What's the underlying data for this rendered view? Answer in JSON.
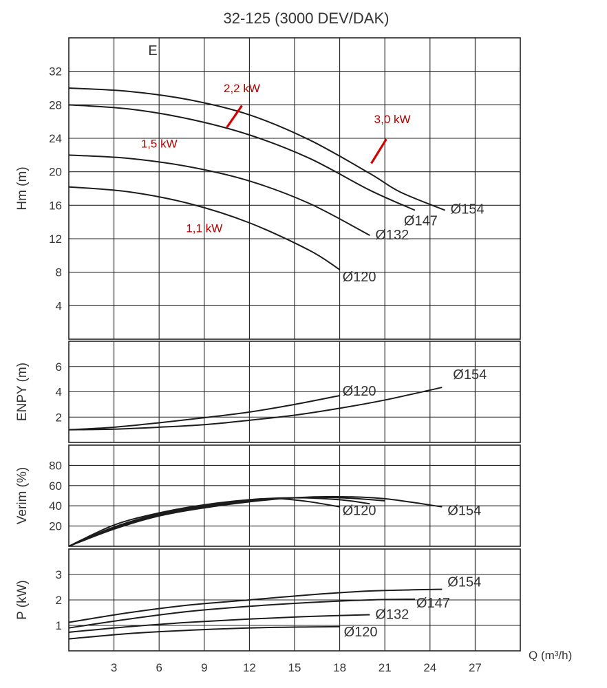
{
  "chart_data": {
    "type": "line",
    "title": "32-125 (3000 DEV/DAK)",
    "xlabel": "Q (m³/h)",
    "xlim": [
      0,
      30
    ],
    "xticks": [
      3,
      6,
      9,
      12,
      15,
      18,
      21,
      24,
      27
    ],
    "panel_letter": "E",
    "panels": [
      {
        "id": "hm",
        "ylabel": "Hm (m)",
        "ylim": [
          0,
          36
        ],
        "yticks": [
          4,
          8,
          12,
          16,
          20,
          24,
          28,
          32
        ],
        "series": [
          {
            "name": "Ø154",
            "x": [
              0,
              4,
              8,
              12,
              16,
              20,
              22,
              25
            ],
            "y": [
              30,
              29.6,
              28.6,
              26.8,
              23.8,
              19.8,
              17.6,
              15.4
            ]
          },
          {
            "name": "Ø147",
            "x": [
              0,
              4,
              8,
              12,
              16,
              20,
              23
            ],
            "y": [
              28,
              27.5,
              26.3,
              24.4,
              21.6,
              17.8,
              15.4
            ]
          },
          {
            "name": "Ø132",
            "x": [
              0,
              4,
              8,
              12,
              16,
              20
            ],
            "y": [
              22,
              21.6,
              20.6,
              18.9,
              16.2,
              12.4
            ]
          },
          {
            "name": "Ø120",
            "x": [
              0,
              4,
              8,
              12,
              16,
              18
            ],
            "y": [
              18.2,
              17.6,
              16.2,
              13.9,
              10.6,
              8.3
            ]
          }
        ],
        "power_labels": [
          {
            "text": "2,2 kW",
            "x": 11.5,
            "y": 29.5
          },
          {
            "text": "3,0 kW",
            "x": 21.5,
            "y": 25.8
          },
          {
            "text": "1,5 kW",
            "x": 6,
            "y": 22.9
          },
          {
            "text": "1,1 kW",
            "x": 9,
            "y": 12.8
          }
        ],
        "power_marks": [
          {
            "x1": 10.5,
            "y1": 25.3,
            "x2": 11.5,
            "y2": 27.9
          },
          {
            "x1": 20.1,
            "y1": 21.0,
            "x2": 21.1,
            "y2": 23.9
          }
        ]
      },
      {
        "id": "enpy",
        "ylabel": "ENPY (m)",
        "ylim": [
          0,
          8
        ],
        "yticks": [
          2,
          4,
          6
        ],
        "series": [
          {
            "name": "Ø120",
            "x": [
              0,
              3,
              6,
              9,
              12,
              15,
              18
            ],
            "y": [
              1,
              1.2,
              1.55,
              1.95,
              2.4,
              3.0,
              3.7
            ]
          },
          {
            "name": "Ø154",
            "x": [
              0,
              3,
              6,
              9,
              12,
              15,
              18,
              21,
              24.8
            ],
            "y": [
              1,
              1.05,
              1.2,
              1.4,
              1.75,
              2.15,
              2.7,
              3.35,
              4.35
            ]
          }
        ]
      },
      {
        "id": "verim",
        "ylabel": "Verim (%)",
        "ylim": [
          0,
          100
        ],
        "yticks": [
          20,
          40,
          60,
          80
        ],
        "series": [
          {
            "name": "Ø120",
            "x": [
              0,
              3,
              6,
              9,
              12,
              14,
              16,
              18
            ],
            "y": [
              0,
              21,
              33,
              41,
              46,
              47,
              44,
              39
            ]
          },
          {
            "name": "Ø132",
            "x": [
              0,
              3,
              6,
              9,
              12,
              15,
              18,
              20
            ],
            "y": [
              0,
              19,
              32,
              40,
              46,
              48,
              46,
              42
            ]
          },
          {
            "name": "Ø147",
            "x": [
              0,
              3,
              6,
              9,
              12,
              15,
              18,
              21
            ],
            "y": [
              0,
              18,
              31,
              39,
              45,
              48,
              48,
              45
            ]
          },
          {
            "name": "Ø154",
            "x": [
              0,
              3,
              6,
              9,
              12,
              15,
              18,
              21,
              24.8
            ],
            "y": [
              0,
              17,
              30,
              38,
              44,
              48,
              49,
              47,
              39
            ]
          }
        ]
      },
      {
        "id": "power",
        "ylabel": "P (kW)",
        "ylim": [
          0,
          4
        ],
        "yticks": [
          1,
          2,
          3
        ],
        "series": [
          {
            "name": "Ø154",
            "x": [
              0,
              4,
              8,
              12,
              16,
              20,
              24.8
            ],
            "y": [
              1.12,
              1.5,
              1.8,
              2.0,
              2.2,
              2.35,
              2.42
            ]
          },
          {
            "name": "Ø147",
            "x": [
              0,
              4,
              8,
              12,
              16,
              20,
              23
            ],
            "y": [
              0.9,
              1.25,
              1.55,
              1.75,
              1.9,
              2.0,
              2.03
            ]
          },
          {
            "name": "Ø132",
            "x": [
              0,
              4,
              8,
              12,
              16,
              20
            ],
            "y": [
              0.73,
              0.95,
              1.12,
              1.25,
              1.35,
              1.42
            ]
          },
          {
            "name": "Ø120",
            "x": [
              0,
              4,
              8,
              12,
              16,
              18
            ],
            "y": [
              0.47,
              0.68,
              0.81,
              0.9,
              0.94,
              0.95
            ]
          }
        ]
      }
    ]
  }
}
